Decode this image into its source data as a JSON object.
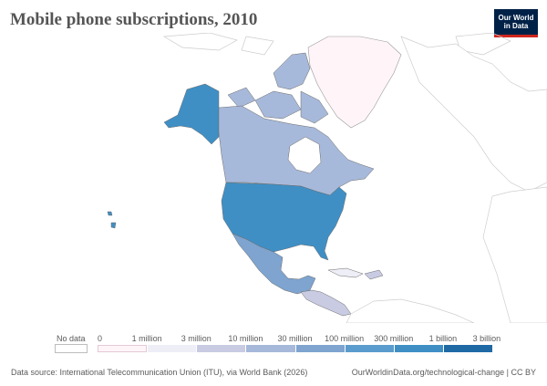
{
  "title": "Mobile phone subscriptions, 2010",
  "logo": {
    "line1": "Our World",
    "line2": "in Data"
  },
  "legend": {
    "no_data_label": "No data",
    "ticks": [
      "0",
      "1 million",
      "3 million",
      "10 million",
      "30 million",
      "100 million",
      "300 million",
      "1 billion",
      "3 billion"
    ],
    "bin_colors": [
      "#fff5f9",
      "#eeeef7",
      "#c9cbe3",
      "#a7b9da",
      "#7ea4cf",
      "#5a9ccd",
      "#3f8fc5",
      "#1f6aa5"
    ],
    "no_data_color": "#ffffff"
  },
  "map": {
    "type": "choropleth",
    "region": "North America",
    "countries": [
      {
        "name": "Greenland",
        "bin": "0 – 1 million",
        "color": "#fff5f9"
      },
      {
        "name": "Canada",
        "bin": "10 – 30 million",
        "color": "#a7b9da"
      },
      {
        "name": "United States",
        "bin": "300 million – 1 billion",
        "color": "#3f8fc5"
      },
      {
        "name": "Mexico",
        "bin": "30 – 100 million",
        "color": "#7ea4cf"
      },
      {
        "name": "Central America",
        "bin": "3 – 10 million",
        "color": "#c9cbe3"
      },
      {
        "name": "Cuba",
        "bin": "1 – 3 million",
        "color": "#eeeef7"
      }
    ]
  },
  "footer": {
    "source": "Data source: International Telecommunication Union (ITU), via World Bank (2026)",
    "url": "OurWorldinData.org/technological-change | CC BY"
  }
}
